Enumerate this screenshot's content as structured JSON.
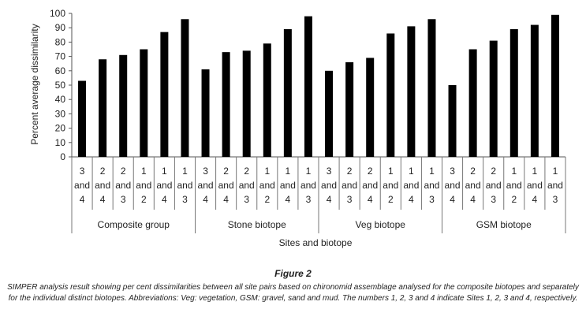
{
  "chart_data": {
    "type": "bar",
    "ylabel": "Percent average dissimilarity",
    "xlabel": "Sites and biotope",
    "ylim": [
      0,
      100
    ],
    "yticks": [
      0,
      10,
      20,
      30,
      40,
      50,
      60,
      70,
      80,
      90,
      100
    ],
    "grid": false,
    "bar_color": "#000000",
    "groups": [
      {
        "name": "Composite group",
        "categories": [
          [
            "3",
            "and",
            "4"
          ],
          [
            "2",
            "and",
            "4"
          ],
          [
            "2",
            "and",
            "3"
          ],
          [
            "1",
            "and",
            "2"
          ],
          [
            "1",
            "and",
            "4"
          ],
          [
            "1",
            "and",
            "3"
          ]
        ],
        "values": [
          53,
          68,
          71,
          75,
          87,
          96
        ]
      },
      {
        "name": "Stone biotope",
        "categories": [
          [
            "3",
            "and",
            "4"
          ],
          [
            "2",
            "and",
            "4"
          ],
          [
            "2",
            "and",
            "3"
          ],
          [
            "1",
            "and",
            "2"
          ],
          [
            "1",
            "and",
            "4"
          ],
          [
            "1",
            "and",
            "3"
          ]
        ],
        "values": [
          61,
          73,
          74,
          79,
          89,
          98
        ]
      },
      {
        "name": "Veg biotope",
        "categories": [
          [
            "3",
            "and",
            "4"
          ],
          [
            "2",
            "and",
            "3"
          ],
          [
            "2",
            "and",
            "4"
          ],
          [
            "1",
            "and",
            "2"
          ],
          [
            "1",
            "and",
            "4"
          ],
          [
            "1",
            "and",
            "3"
          ]
        ],
        "values": [
          60,
          66,
          69,
          86,
          91,
          96
        ]
      },
      {
        "name": "GSM biotope",
        "categories": [
          [
            "3",
            "and",
            "4"
          ],
          [
            "2",
            "and",
            "4"
          ],
          [
            "2",
            "and",
            "3"
          ],
          [
            "1",
            "and",
            "2"
          ],
          [
            "1",
            "and",
            "4"
          ],
          [
            "1",
            "and",
            "3"
          ]
        ],
        "values": [
          50,
          75,
          81,
          89,
          92,
          99
        ]
      }
    ]
  },
  "caption": {
    "title": "Figure 2",
    "text": "SIMPER analysis result showing per cent dissimilarities between all site pairs based on chironomid assemblage analysed for the composite biotopes and separately for the individual distinct biotopes. Abbreviations: Veg: vegetation, GSM: gravel, sand and mud. The numbers 1, 2, 3 and 4 indicate Sites 1, 2, 3 and 4, respectively."
  }
}
